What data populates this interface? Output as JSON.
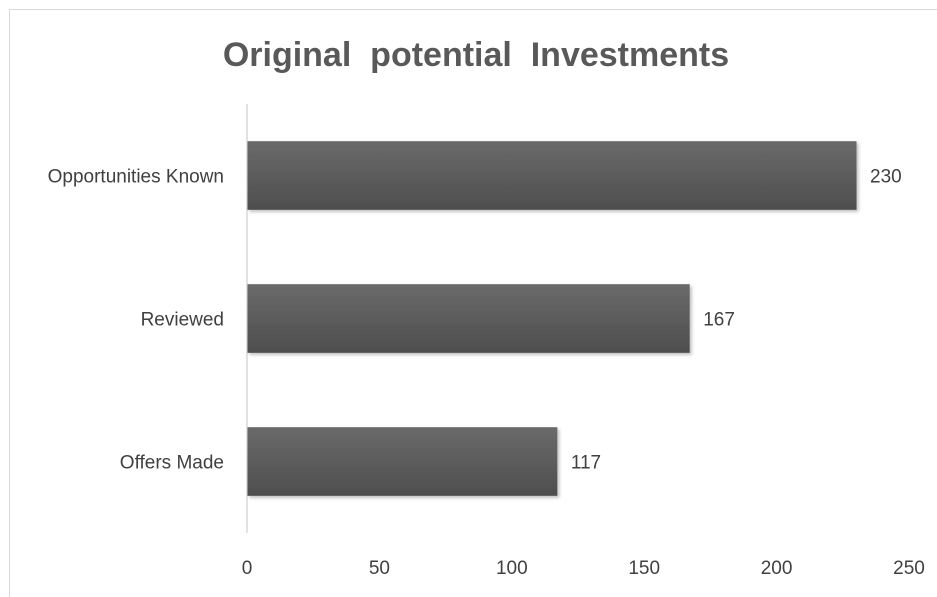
{
  "chart_data": {
    "type": "bar",
    "orientation": "horizontal",
    "title": "Original  potential  Investments",
    "categories": [
      "Opportunities Known",
      "Reviewed",
      "Offers Made"
    ],
    "values": [
      230,
      167,
      117
    ],
    "xlim": [
      0,
      250
    ],
    "xticks": [
      0,
      50,
      100,
      150,
      200,
      250
    ],
    "grid": false,
    "legend": "none",
    "bar_color": "#5f5f5f",
    "data_labels": true
  }
}
